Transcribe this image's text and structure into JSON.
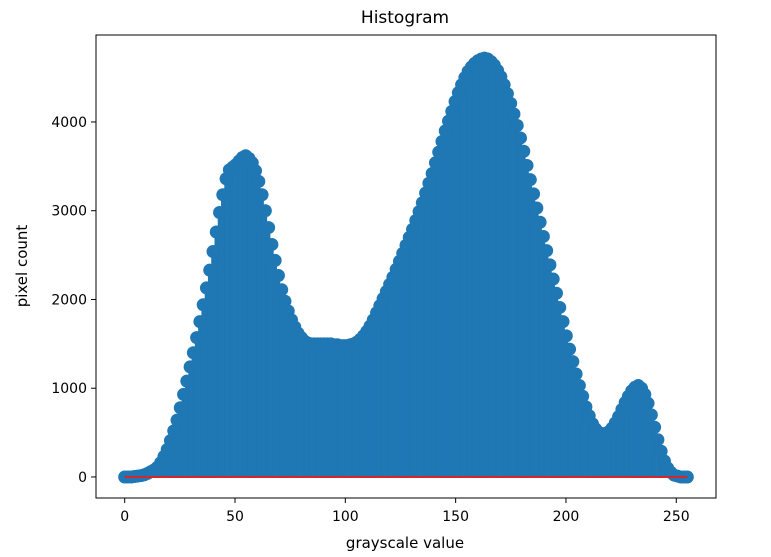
{
  "chart_data": {
    "type": "stem",
    "title": "Histogram",
    "xlabel": "grayscale value",
    "ylabel": "pixel count",
    "xlim": [
      -13,
      268
    ],
    "ylim": [
      -237,
      4980
    ],
    "xticks": [
      0,
      50,
      100,
      150,
      200,
      250
    ],
    "yticks": [
      0,
      1000,
      2000,
      3000,
      4000
    ],
    "grid": false,
    "legend": "none",
    "colors": {
      "stem": "#1f77b4",
      "marker": "#1f77b4",
      "baseline": "#d62728"
    },
    "x_range": [
      0,
      255
    ],
    "values": [
      0,
      0,
      0,
      5,
      10,
      15,
      25,
      40,
      60,
      80,
      110,
      160,
      230,
      310,
      410,
      520,
      640,
      780,
      930,
      1080,
      1240,
      1400,
      1570,
      1750,
      1940,
      2130,
      2330,
      2540,
      2760,
      2980,
      3180,
      3360,
      3460,
      3490,
      3520,
      3560,
      3600,
      3620,
      3590,
      3540,
      3450,
      3330,
      3180,
      3000,
      2810,
      2620,
      2440,
      2270,
      2110,
      1980,
      1870,
      1770,
      1690,
      1620,
      1570,
      1530,
      1510,
      1500,
      1500,
      1500,
      1500,
      1500,
      1500,
      1500,
      1490,
      1490,
      1480,
      1480,
      1480,
      1490,
      1500,
      1520,
      1550,
      1590,
      1640,
      1700,
      1770,
      1850,
      1930,
      2010,
      2090,
      2170,
      2250,
      2340,
      2430,
      2520,
      2610,
      2700,
      2790,
      2890,
      2990,
      3090,
      3200,
      3310,
      3420,
      3540,
      3660,
      3780,
      3900,
      4010,
      4120,
      4230,
      4330,
      4420,
      4500,
      4570,
      4620,
      4660,
      4690,
      4710,
      4720,
      4710,
      4680,
      4640,
      4580,
      4510,
      4420,
      4320,
      4210,
      4090,
      3960,
      3820,
      3670,
      3510,
      3350,
      3190,
      3030,
      2870,
      2710,
      2550,
      2390,
      2230,
      2070,
      1910,
      1750,
      1590,
      1440,
      1300,
      1160,
      1030,
      910,
      790,
      690,
      600,
      540,
      500,
      490,
      490,
      510,
      550,
      610,
      680,
      760,
      840,
      910,
      970,
      1010,
      1030,
      1000,
      930,
      830,
      700,
      560,
      420,
      290,
      180,
      100,
      50,
      20,
      10,
      0,
      0,
      0
    ]
  }
}
